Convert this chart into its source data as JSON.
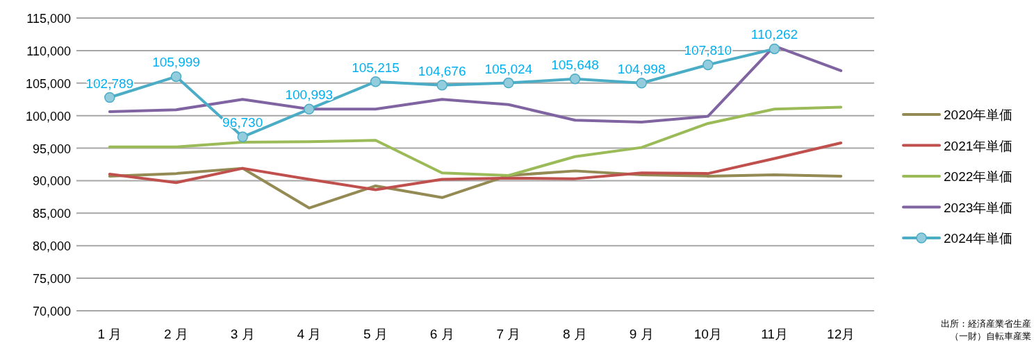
{
  "chart_data": {
    "type": "line",
    "categories": [
      "1 月",
      "2 月",
      "3 月",
      "4 月",
      "5 月",
      "6 月",
      "7 月",
      "8 月",
      "9 月",
      "10月",
      "11月",
      "12月"
    ],
    "series": [
      {
        "name": "2020年単価",
        "color": "#948a54",
        "values": [
          90700,
          91100,
          91900,
          85800,
          89200,
          87400,
          90800,
          91500,
          90900,
          90700,
          90900,
          90700
        ]
      },
      {
        "name": "2021年単価",
        "color": "#c0504d",
        "values": [
          91000,
          89700,
          91900,
          90200,
          88600,
          90200,
          90400,
          90300,
          91200,
          91100,
          93400,
          95800
        ]
      },
      {
        "name": "2022年単価",
        "color": "#9bbb59",
        "values": [
          95200,
          95200,
          95900,
          96000,
          96200,
          91200,
          90800,
          93700,
          95100,
          98800,
          101000,
          101300
        ]
      },
      {
        "name": "2023年単価",
        "color": "#8064a2",
        "values": [
          100600,
          100900,
          102500,
          101000,
          101000,
          102500,
          101700,
          99300,
          99000,
          99900,
          110700,
          106900
        ]
      },
      {
        "name": "2024年単価",
        "color": "#4bacc6",
        "marker": "circle",
        "values": [
          102789,
          105999,
          96730,
          100993,
          105215,
          104676,
          105024,
          105648,
          104998,
          107810,
          110262,
          null
        ],
        "value_labels": [
          "102,789",
          "105,999",
          "96,730",
          "100,993",
          "105,215",
          "104,676",
          "105,024",
          "105,648",
          "104,998",
          "107,810",
          "110,262",
          null
        ]
      }
    ],
    "ylim": [
      70000,
      115000
    ],
    "yticks": [
      {
        "value": 70000,
        "label": "70,000"
      },
      {
        "value": 75000,
        "label": "75,000"
      },
      {
        "value": 80000,
        "label": "80,000"
      },
      {
        "value": 85000,
        "label": "85,000"
      },
      {
        "value": 90000,
        "label": "90,000"
      },
      {
        "value": 95000,
        "label": "95,000"
      },
      {
        "value": 100000,
        "label": "100,000"
      },
      {
        "value": 105000,
        "label": "105,000"
      },
      {
        "value": 110000,
        "label": "110,000"
      },
      {
        "value": 115000,
        "label": "115,000"
      }
    ],
    "grid": "y",
    "legend": "right",
    "annotations": [
      "出所：経済産業省生産",
      "（一財）自転車産業"
    ]
  }
}
